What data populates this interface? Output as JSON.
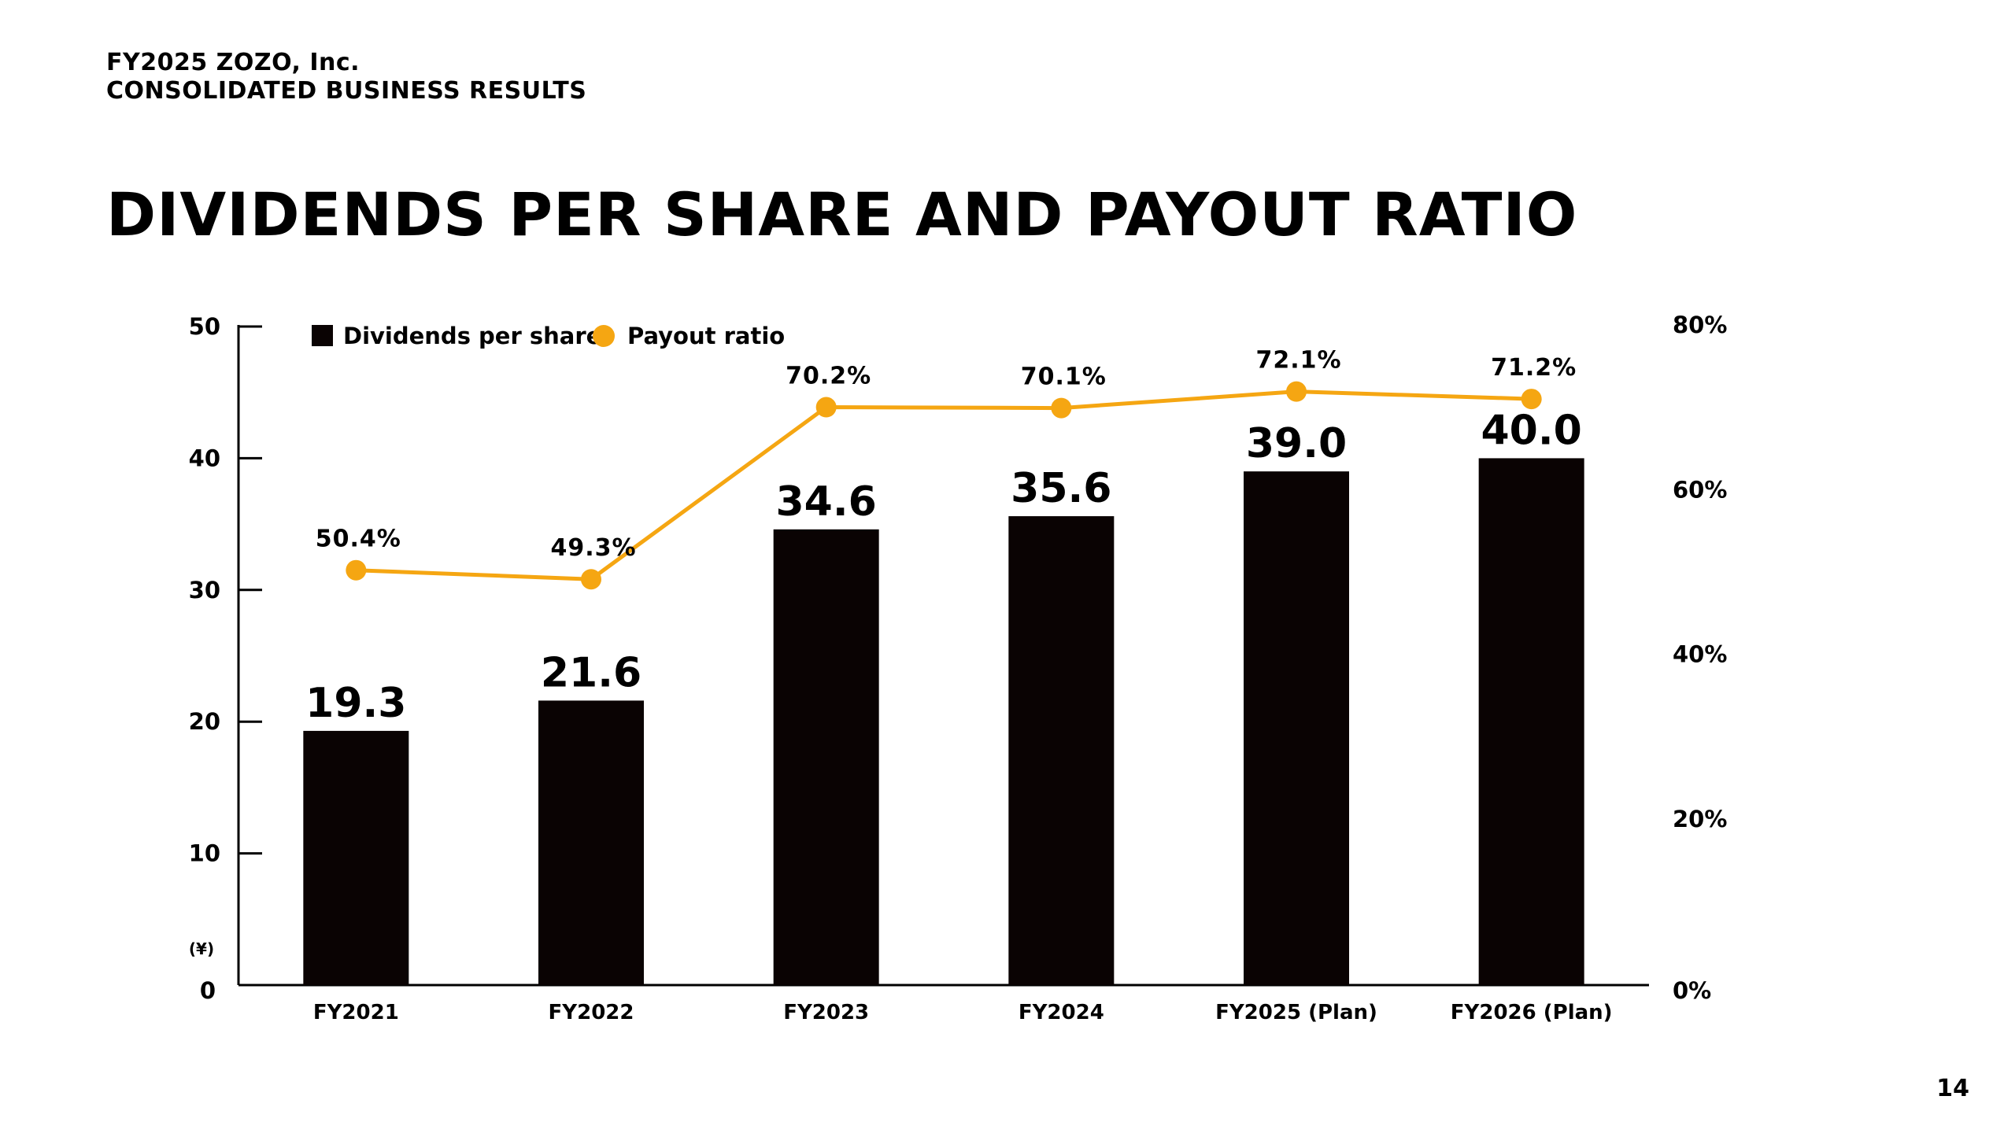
{
  "header": {
    "line1": "FY2025 ZOZO, Inc.",
    "line2": "CONSOLIDATED BUSINESS RESULTS"
  },
  "page_title": "DIVIDENDS PER SHARE AND PAYOUT RATIO",
  "page_number": "14",
  "colors": {
    "bar": "#0a0303",
    "line": "#f5a612",
    "axis": "#000000"
  },
  "chart_data": {
    "type": "bar",
    "title": "DIVIDENDS PER SHARE AND PAYOUT RATIO",
    "categories": [
      "FY2021",
      "FY2022",
      "FY2023",
      "FY2024",
      "FY2025 (Plan)",
      "FY2026 (Plan)"
    ],
    "series": [
      {
        "name": "Dividends per share",
        "type": "bar",
        "axis": "left",
        "values": [
          19.3,
          21.6,
          34.6,
          35.6,
          39.0,
          40.0
        ],
        "labels": [
          "19.3",
          "21.6",
          "34.6",
          "35.6",
          "39.0",
          "40.0"
        ]
      },
      {
        "name": "Payout ratio",
        "type": "line",
        "axis": "right",
        "values": [
          50.4,
          49.3,
          70.2,
          70.1,
          72.1,
          71.2
        ],
        "labels": [
          "50.4%",
          "49.3%",
          "70.2%",
          "70.1%",
          "72.1%",
          "71.2%"
        ]
      }
    ],
    "y_left": {
      "unit": "(¥)",
      "ylim": [
        0,
        50
      ],
      "ticks": [
        0,
        10,
        20,
        30,
        40,
        50
      ],
      "tick_labels": [
        "0",
        "10",
        "20",
        "30",
        "40",
        "50"
      ]
    },
    "y_right": {
      "ylim": [
        0,
        80
      ],
      "ticks": [
        0,
        20,
        40,
        60,
        80
      ],
      "tick_labels": [
        "0%",
        "20%",
        "40%",
        "60%",
        "80%"
      ]
    },
    "legend": {
      "placement": "top-left",
      "entries": [
        "Dividends per share",
        "Payout ratio"
      ]
    },
    "grid": false
  }
}
